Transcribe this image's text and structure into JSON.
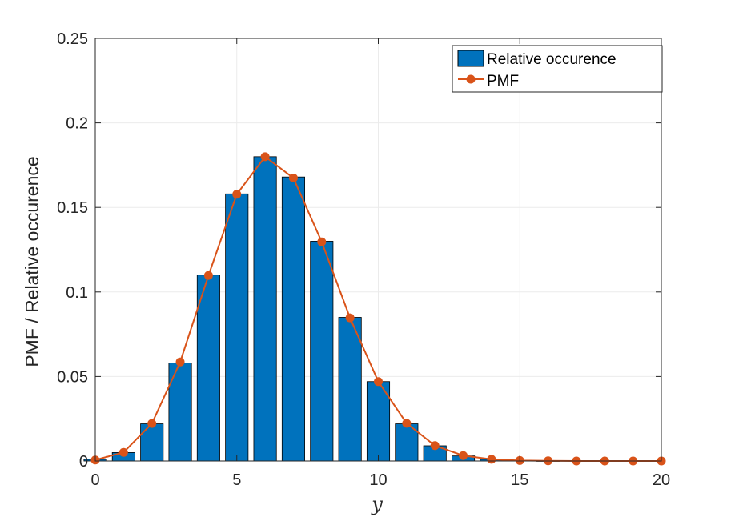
{
  "chart_data": {
    "type": "bar",
    "title": "",
    "xlabel": "y",
    "ylabel": "PMF / Relative occurence",
    "xlim": [
      0,
      20
    ],
    "ylim": [
      0,
      0.25
    ],
    "xticks": [
      0,
      5,
      10,
      15,
      20
    ],
    "xtick_labels": [
      "0",
      "5",
      "10",
      "15",
      "20"
    ],
    "yticks": [
      0,
      0.05,
      0.1,
      0.15,
      0.2,
      0.25
    ],
    "ytick_labels": [
      "0",
      "0.05",
      "0.1",
      "0.15",
      "0.2",
      "0.25"
    ],
    "grid": true,
    "legend_position": "top-right",
    "x": [
      0,
      1,
      2,
      3,
      4,
      5,
      6,
      7,
      8,
      9,
      10,
      11,
      12,
      13,
      14,
      15,
      16,
      17,
      18,
      19,
      20
    ],
    "series": [
      {
        "name": "Relative occurence",
        "type": "bar",
        "color": "#0072BD",
        "values": [
          0.001,
          0.005,
          0.022,
          0.058,
          0.11,
          0.158,
          0.18,
          0.168,
          0.13,
          0.085,
          0.047,
          0.022,
          0.009,
          0.003,
          0.001,
          0.0003,
          0.0001,
          0,
          0,
          0,
          0
        ]
      },
      {
        "name": "PMF",
        "type": "line",
        "color": "#D95319",
        "values": [
          0.0006,
          0.0051,
          0.0222,
          0.0586,
          0.1098,
          0.1578,
          0.18,
          0.1674,
          0.1296,
          0.0847,
          0.047,
          0.0223,
          0.0091,
          0.0032,
          0.001,
          0.0003,
          0.0001,
          2e-05,
          5e-06,
          1e-06,
          2e-07
        ]
      }
    ]
  },
  "colors": {
    "bar_fill": "#0072BD",
    "line": "#D95319",
    "grid": "#ebebeb",
    "axis": "#262626"
  }
}
